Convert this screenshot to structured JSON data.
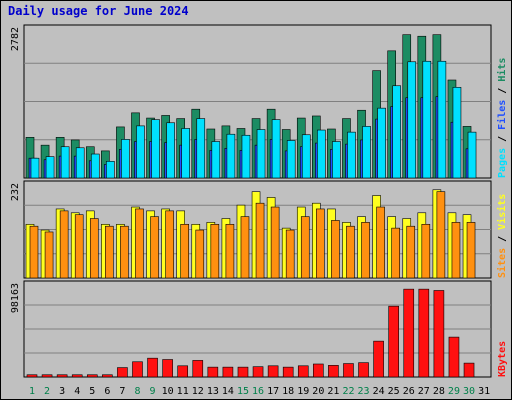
{
  "title": "Daily usage for June 2024",
  "colors": {
    "pages": "#00e0ff",
    "files": "#2050ff",
    "hits": "#1c8c63",
    "visits": "#ffff20",
    "sites": "#ff9010",
    "kbytes": "#ff1010",
    "weekend_label": "#00804a",
    "weekday_label": "#000000"
  },
  "chart_data": [
    {
      "type": "bar",
      "name": "hits-files-pages",
      "max_label": "2782",
      "ylim": [
        0,
        2782
      ],
      "legend": [
        {
          "text": "Pages",
          "color": "#00e0ff"
        },
        {
          "text": "Files",
          "color": "#2050ff"
        },
        {
          "text": "Hits",
          "color": "#1c8c63"
        }
      ],
      "categories": [
        "1",
        "2",
        "3",
        "4",
        "5",
        "6",
        "7",
        "8",
        "9",
        "10",
        "11",
        "12",
        "13",
        "14",
        "15",
        "16",
        "17",
        "18",
        "19",
        "20",
        "21",
        "22",
        "23",
        "24",
        "25",
        "26",
        "27",
        "28",
        "29",
        "30",
        "31"
      ],
      "series": [
        {
          "name": "Hits",
          "values": [
            780,
            630,
            780,
            730,
            600,
            520,
            980,
            1250,
            1150,
            1200,
            1140,
            1320,
            940,
            1000,
            950,
            1140,
            1320,
            930,
            1150,
            1190,
            940,
            1140,
            1300,
            2060,
            2440,
            2750,
            2720,
            2750,
            1880,
            990,
            0
          ]
        },
        {
          "name": "Files",
          "values": [
            380,
            350,
            420,
            420,
            330,
            260,
            550,
            700,
            700,
            680,
            630,
            740,
            530,
            570,
            530,
            630,
            740,
            520,
            600,
            670,
            550,
            650,
            730,
            1130,
            1370,
            1540,
            1540,
            1560,
            1070,
            560,
            0
          ]
        },
        {
          "name": "Pages",
          "values": [
            380,
            410,
            600,
            580,
            460,
            320,
            740,
            1000,
            1120,
            1060,
            950,
            1140,
            700,
            840,
            820,
            930,
            1120,
            720,
            830,
            920,
            700,
            880,
            990,
            1340,
            1770,
            2230,
            2240,
            2240,
            1740,
            880,
            0
          ]
        }
      ]
    },
    {
      "type": "bar",
      "name": "visits-sites",
      "max_label": "232",
      "ylim": [
        0,
        232
      ],
      "legend": [
        {
          "text": "Sites",
          "color": "#ff9010"
        },
        {
          "text": "Visits",
          "color": "#ffff20"
        }
      ],
      "categories": [
        "1",
        "2",
        "3",
        "4",
        "5",
        "6",
        "7",
        "8",
        "9",
        "10",
        "11",
        "12",
        "13",
        "14",
        "15",
        "16",
        "17",
        "18",
        "19",
        "20",
        "21",
        "22",
        "23",
        "24",
        "25",
        "26",
        "27",
        "28",
        "29",
        "30",
        "31"
      ],
      "series": [
        {
          "name": "Visits",
          "values": [
            140,
            125,
            180,
            170,
            175,
            140,
            140,
            185,
            175,
            180,
            175,
            140,
            145,
            155,
            190,
            225,
            210,
            130,
            185,
            195,
            180,
            145,
            160,
            215,
            160,
            155,
            170,
            230,
            170,
            165,
            0
          ]
        },
        {
          "name": "Sites",
          "values": [
            135,
            120,
            175,
            165,
            155,
            135,
            135,
            180,
            160,
            175,
            140,
            125,
            140,
            140,
            160,
            195,
            185,
            125,
            160,
            180,
            150,
            135,
            145,
            185,
            130,
            135,
            140,
            225,
            145,
            145,
            0
          ]
        }
      ]
    },
    {
      "type": "bar",
      "name": "kbytes",
      "max_label": "98163",
      "ylim": [
        0,
        98163
      ],
      "legend": [
        {
          "text": "KBytes",
          "color": "#ff1010"
        }
      ],
      "categories": [
        "1",
        "2",
        "3",
        "4",
        "5",
        "6",
        "7",
        "8",
        "9",
        "10",
        "11",
        "12",
        "13",
        "14",
        "15",
        "16",
        "17",
        "18",
        "19",
        "20",
        "21",
        "22",
        "23",
        "24",
        "25",
        "26",
        "27",
        "28",
        "29",
        "30",
        "31"
      ],
      "series": [
        {
          "name": "KBytes",
          "values": [
            2500,
            2500,
            2500,
            2500,
            2500,
            2500,
            10500,
            17000,
            21000,
            19500,
            12500,
            18500,
            11000,
            11000,
            11000,
            11500,
            12500,
            11000,
            12500,
            14500,
            13000,
            15000,
            16000,
            40000,
            79000,
            98000,
            98000,
            96500,
            44500,
            15500,
            0
          ]
        }
      ]
    }
  ],
  "x_labels": [
    {
      "text": "1",
      "weekend": true
    },
    {
      "text": "2",
      "weekend": true
    },
    {
      "text": "3",
      "weekend": false
    },
    {
      "text": "4",
      "weekend": false
    },
    {
      "text": "5",
      "weekend": false
    },
    {
      "text": "6",
      "weekend": false
    },
    {
      "text": "7",
      "weekend": false
    },
    {
      "text": "8",
      "weekend": true
    },
    {
      "text": "9",
      "weekend": true
    },
    {
      "text": "10",
      "weekend": false
    },
    {
      "text": "11",
      "weekend": false
    },
    {
      "text": "12",
      "weekend": false
    },
    {
      "text": "13",
      "weekend": false
    },
    {
      "text": "14",
      "weekend": false
    },
    {
      "text": "15",
      "weekend": true
    },
    {
      "text": "16",
      "weekend": true
    },
    {
      "text": "17",
      "weekend": false
    },
    {
      "text": "18",
      "weekend": false
    },
    {
      "text": "19",
      "weekend": false
    },
    {
      "text": "20",
      "weekend": false
    },
    {
      "text": "21",
      "weekend": false
    },
    {
      "text": "22",
      "weekend": true
    },
    {
      "text": "23",
      "weekend": true
    },
    {
      "text": "24",
      "weekend": false
    },
    {
      "text": "25",
      "weekend": false
    },
    {
      "text": "26",
      "weekend": false
    },
    {
      "text": "27",
      "weekend": false
    },
    {
      "text": "28",
      "weekend": false
    },
    {
      "text": "29",
      "weekend": true
    },
    {
      "text": "30",
      "weekend": true
    },
    {
      "text": "31",
      "weekend": false
    }
  ]
}
